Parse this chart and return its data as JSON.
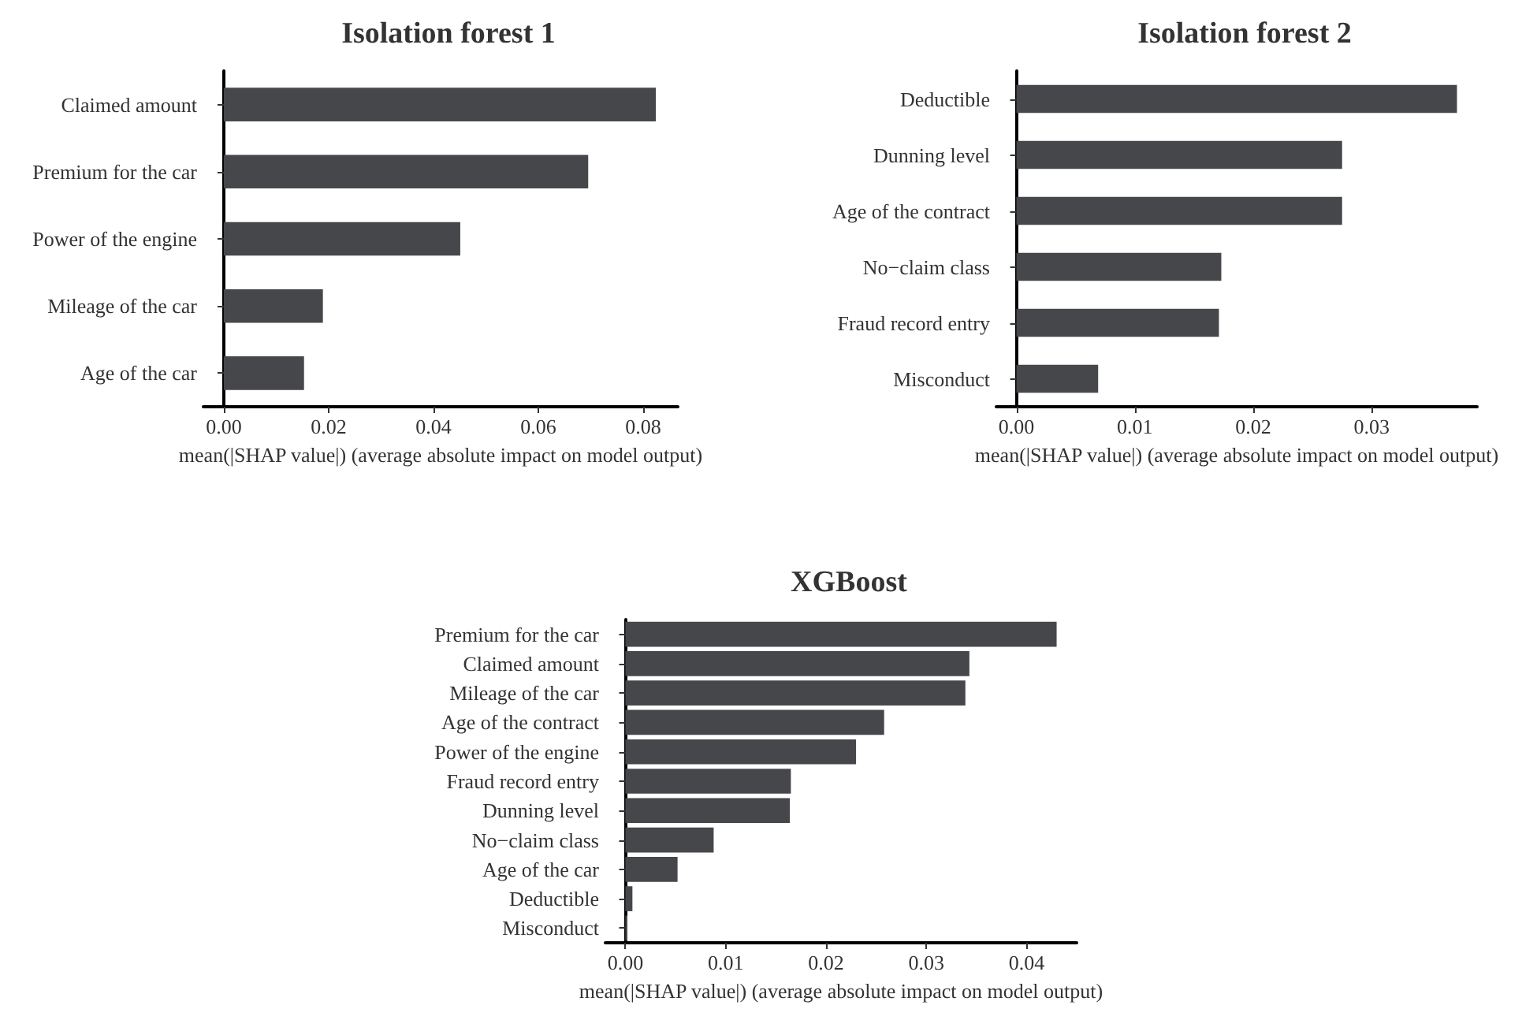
{
  "chart_data": [
    {
      "type": "bar",
      "orientation": "horizontal",
      "title": "Isolation forest 1",
      "xlabel": "mean(|SHAP value|) (average absolute impact on model output)",
      "categories": [
        "Claimed amount",
        "Premium for the car",
        "Power of the engine",
        "Mileage of the car",
        "Age of the car"
      ],
      "values": [
        0.0824,
        0.0695,
        0.0451,
        0.0189,
        0.0153
      ],
      "color": "#46474a",
      "xlim": [
        -0.0039,
        0.0866
      ],
      "xticks": [
        {
          "value": 0,
          "label": "0.00"
        },
        {
          "value": 0.02,
          "label": "0.02"
        },
        {
          "value": 0.04,
          "label": "0.04"
        },
        {
          "value": 0.06,
          "label": "0.06"
        },
        {
          "value": 0.08,
          "label": "0.08"
        }
      ]
    },
    {
      "type": "bar",
      "orientation": "horizontal",
      "title": "Isolation forest 2",
      "xlabel": "mean(|SHAP value|) (average absolute impact on model output)",
      "categories": [
        "Deductible",
        "Dunning level",
        "Age of the contract",
        "No−claim class",
        "Fraud record entry",
        "Misconduct"
      ],
      "values": [
        0.0372,
        0.0275,
        0.0275,
        0.0173,
        0.0171,
        0.0069
      ],
      "color": "#46474a",
      "xlim": [
        -0.0017,
        0.0389
      ],
      "xticks": [
        {
          "value": 0,
          "label": "0.00"
        },
        {
          "value": 0.01,
          "label": "0.01"
        },
        {
          "value": 0.02,
          "label": "0.02"
        },
        {
          "value": 0.03,
          "label": "0.03"
        }
      ]
    },
    {
      "type": "bar",
      "orientation": "horizontal",
      "title": "XGBoost",
      "xlabel": "mean(|SHAP value|) (average absolute impact on model output)",
      "categories": [
        "Premium for the car",
        "Claimed amount",
        "Mileage of the car",
        "Age of the contract",
        "Power of the engine",
        "Fraud record entry",
        "Dunning level",
        "No−claim class",
        "Age of the car",
        "Deductible",
        "Misconduct"
      ],
      "values": [
        0.043,
        0.0343,
        0.0339,
        0.0258,
        0.023,
        0.0165,
        0.0164,
        0.0088,
        0.0052,
        0.0007,
        0.0002
      ],
      "color": "#46474a",
      "xlim": [
        -0.002,
        0.045
      ],
      "xticks": [
        {
          "value": 0,
          "label": "0.00"
        },
        {
          "value": 0.01,
          "label": "0.01"
        },
        {
          "value": 0.02,
          "label": "0.02"
        },
        {
          "value": 0.03,
          "label": "0.03"
        },
        {
          "value": 0.04,
          "label": "0.04"
        }
      ]
    }
  ]
}
